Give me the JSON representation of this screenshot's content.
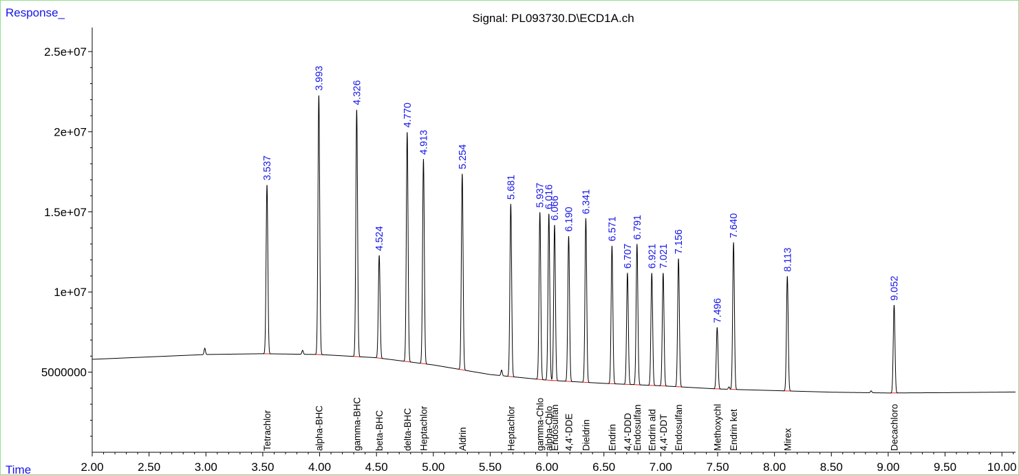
{
  "chart_data": {
    "type": "line",
    "title": "Signal: PL093730.D\\ECD1A.ch",
    "ylabel": "Response_",
    "xlabel": "Time",
    "xlim": [
      2.0,
      10.12
    ],
    "ylim": [
      0,
      26500000
    ],
    "x_ticks": [
      "2.00",
      "2.50",
      "3.00",
      "3.50",
      "4.00",
      "4.50",
      "5.00",
      "5.50",
      "6.00",
      "6.50",
      "7.00",
      "7.50",
      "8.00",
      "8.50",
      "9.00",
      "9.50",
      "10.00"
    ],
    "y_ticks": [
      "5000000",
      "1e+07",
      "1.5e+07",
      "2e+07",
      "2.5e+07"
    ],
    "baseline": [
      [
        2.0,
        5800000
      ],
      [
        2.5,
        5950000
      ],
      [
        3.0,
        6100000
      ],
      [
        3.5,
        6150000
      ],
      [
        4.0,
        6100000
      ],
      [
        4.5,
        5900000
      ],
      [
        5.0,
        5450000
      ],
      [
        5.5,
        4850000
      ],
      [
        6.0,
        4500000
      ],
      [
        6.5,
        4300000
      ],
      [
        7.0,
        4150000
      ],
      [
        7.5,
        3950000
      ],
      [
        8.0,
        3850000
      ],
      [
        8.5,
        3750000
      ],
      [
        9.0,
        3700000
      ],
      [
        9.5,
        3720000
      ],
      [
        10.12,
        3760000
      ]
    ],
    "bumps": [
      [
        2.99,
        400000
      ],
      [
        3.85,
        250000
      ],
      [
        5.6,
        350000
      ],
      [
        7.6,
        150000
      ],
      [
        8.85,
        120000
      ]
    ],
    "peaks": [
      {
        "rt": "3.537",
        "time": 3.537,
        "height": 16700000,
        "compound": "Tetrachlor"
      },
      {
        "rt": "3.993",
        "time": 3.993,
        "height": 22300000,
        "compound": "alpha-BHC"
      },
      {
        "rt": "4.326",
        "time": 4.326,
        "height": 21400000,
        "compound": "gamma-BHC"
      },
      {
        "rt": "4.524",
        "time": 4.524,
        "height": 12300000,
        "compound": "beta-BHC"
      },
      {
        "rt": "4.770",
        "time": 4.77,
        "height": 20000000,
        "compound": "delta-BHC"
      },
      {
        "rt": "4.913",
        "time": 4.913,
        "height": 18300000,
        "compound": "Heptachlor"
      },
      {
        "rt": "5.254",
        "time": 5.254,
        "height": 17400000,
        "compound": "Aldrin"
      },
      {
        "rt": "5.681",
        "time": 5.681,
        "height": 15500000,
        "compound": "Heptachlor"
      },
      {
        "rt": "5.937",
        "time": 5.937,
        "height": 15000000,
        "compound": "gamma-Chlo"
      },
      {
        "rt": "6.016",
        "time": 6.016,
        "height": 14900000,
        "compound": "alpha-Chlo"
      },
      {
        "rt": "6.066",
        "time": 6.066,
        "height": 14200000,
        "compound": "Endosulfan"
      },
      {
        "rt": "6.190",
        "time": 6.19,
        "height": 13500000,
        "compound": "4,4'-DDE"
      },
      {
        "rt": "6.341",
        "time": 6.341,
        "height": 14600000,
        "compound": "Dieldrin"
      },
      {
        "rt": "6.571",
        "time": 6.571,
        "height": 12900000,
        "compound": "Endrin"
      },
      {
        "rt": "6.707",
        "time": 6.707,
        "height": 11200000,
        "compound": "4,4'-DDD"
      },
      {
        "rt": "6.791",
        "time": 6.791,
        "height": 13000000,
        "compound": "Endosulfan"
      },
      {
        "rt": "6.921",
        "time": 6.921,
        "height": 11200000,
        "compound": "Endrin ald"
      },
      {
        "rt": "7.021",
        "time": 7.021,
        "height": 11200000,
        "compound": "4,4'-DDT"
      },
      {
        "rt": "7.156",
        "time": 7.156,
        "height": 12100000,
        "compound": "Endosulfan"
      },
      {
        "rt": "7.496",
        "time": 7.496,
        "height": 7800000,
        "compound": "Methoxychl"
      },
      {
        "rt": "7.640",
        "time": 7.64,
        "height": 13100000,
        "compound": "Endrin ket"
      },
      {
        "rt": "8.113",
        "time": 8.113,
        "height": 11000000,
        "compound": "Mirex"
      },
      {
        "rt": "9.052",
        "time": 9.052,
        "height": 9200000,
        "compound": "Decachloro"
      }
    ]
  }
}
